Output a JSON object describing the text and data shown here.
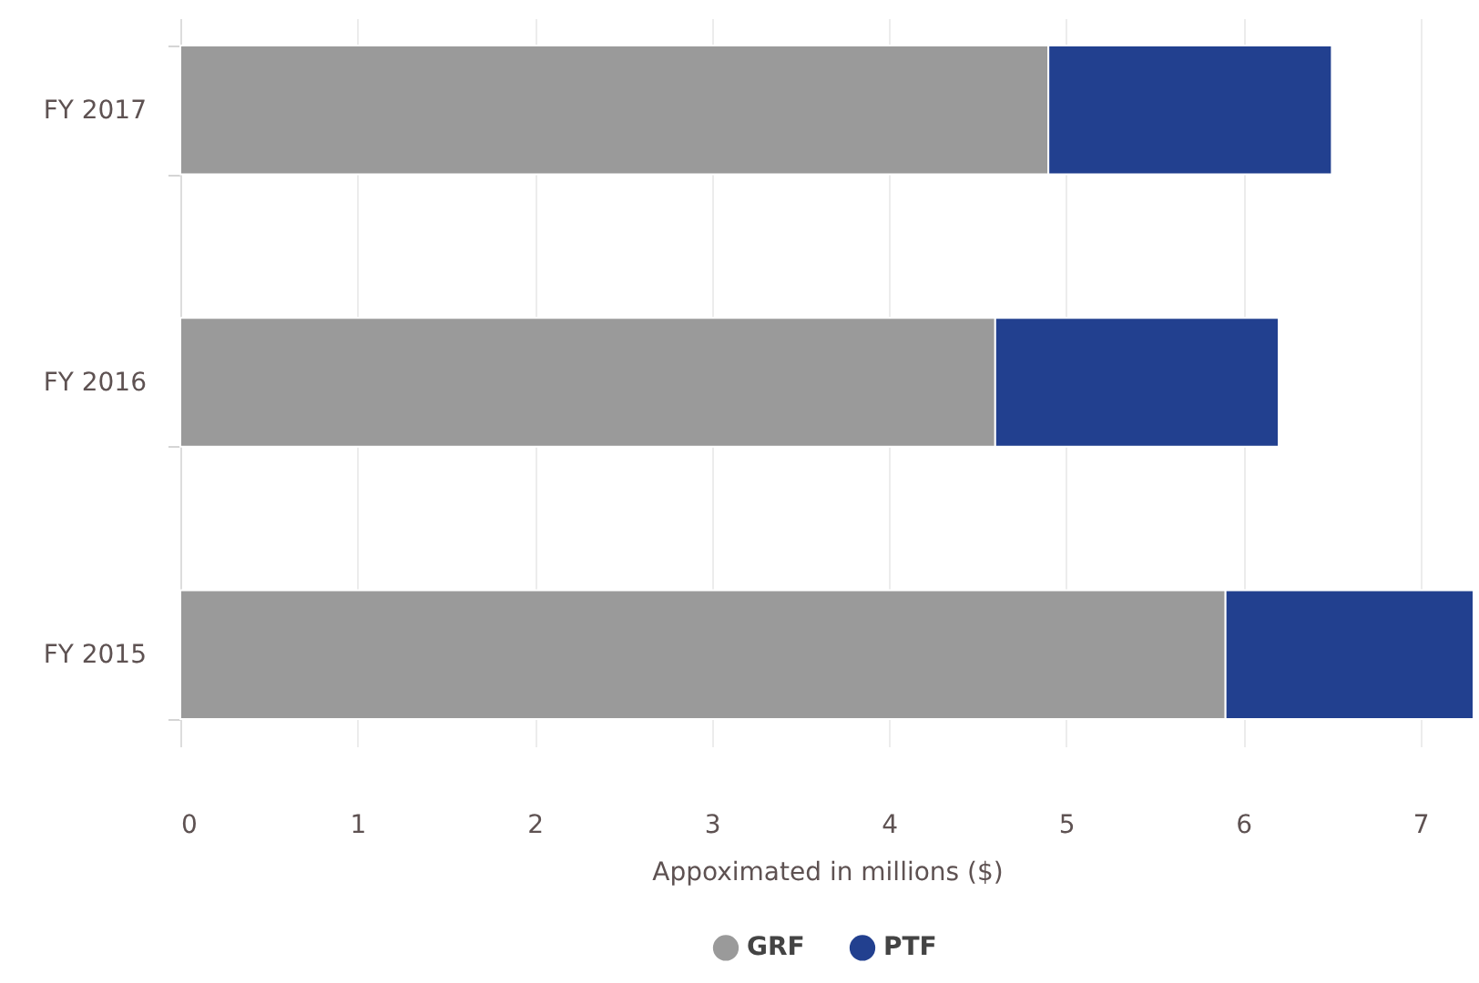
{
  "chart_data": {
    "type": "bar",
    "orientation": "horizontal",
    "stacked": true,
    "categories": [
      "FY 2017",
      "FY 2016",
      "FY 2015"
    ],
    "series": [
      {
        "name": "GRF",
        "color": "#9a9a9a",
        "values": [
          4.9,
          4.6,
          5.9
        ]
      },
      {
        "name": "PTF",
        "color": "#22408f",
        "values": [
          1.6,
          1.6,
          1.4
        ]
      }
    ],
    "xlabel": "Appoximated in millions ($)",
    "xlim": [
      0,
      7.3
    ],
    "xticks": [
      0,
      1,
      2,
      3,
      4,
      5,
      6,
      7
    ],
    "grid": "x",
    "legend": "bottom"
  }
}
